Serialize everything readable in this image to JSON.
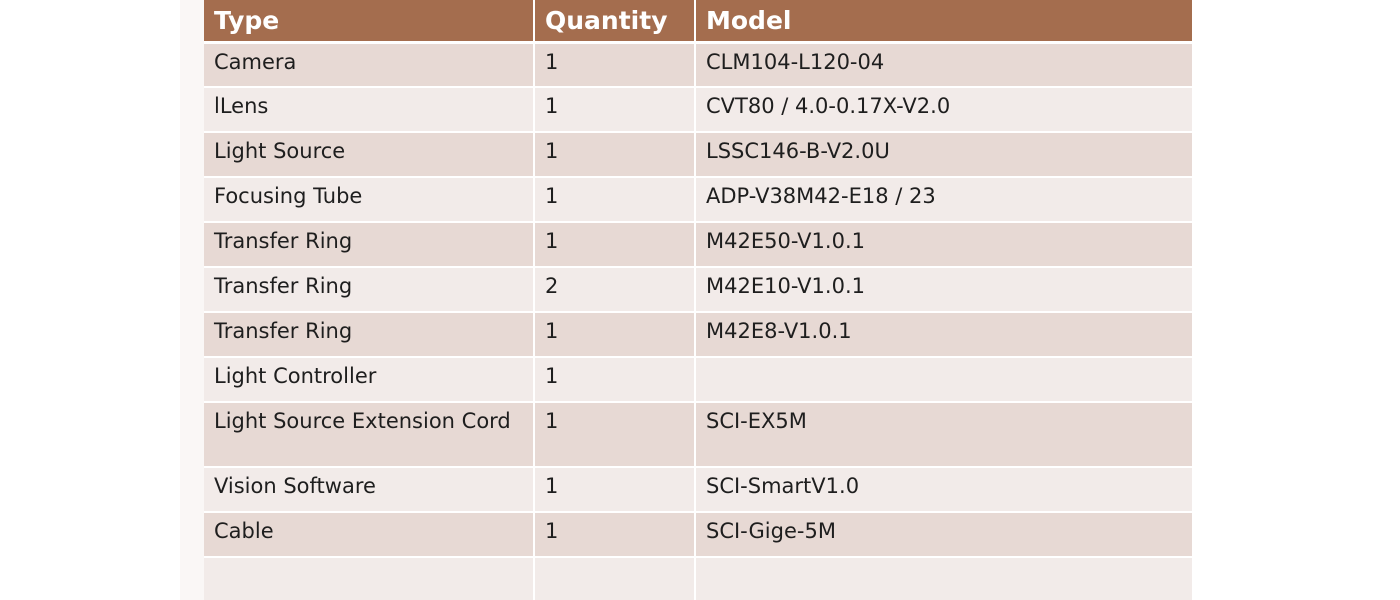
{
  "table": {
    "headers": [
      "Type",
      "Quantity",
      "Model"
    ],
    "rows": [
      {
        "type": "Camera",
        "quantity": "1",
        "model": "CLM104-L120-04"
      },
      {
        "type": "lLens",
        "quantity": "1",
        "model": "CVT80 / 4.0-0.17X-V2.0"
      },
      {
        "type": "Light Source",
        "quantity": "1",
        "model": "LSSC146-B-V2.0U"
      },
      {
        "type": "Focusing Tube",
        "quantity": "1",
        "model": "ADP-V38M42-E18 / 23"
      },
      {
        "type": "Transfer Ring",
        "quantity": "1",
        "model": "M42E50-V1.0.1"
      },
      {
        "type": "Transfer Ring",
        "quantity": "2",
        "model": "M42E10-V1.0.1"
      },
      {
        "type": "Transfer Ring",
        "quantity": "1",
        "model": "M42E8-V1.0.1"
      },
      {
        "type": "Light Controller",
        "quantity": "1",
        "model": ""
      },
      {
        "type": "Light Source Extension Cord",
        "quantity": "1",
        "model": "SCI-EX5M"
      },
      {
        "type": "Vision Software",
        "quantity": "1",
        "model": "SCI-SmartV1.0"
      },
      {
        "type": "Cable",
        "quantity": "1",
        "model": "SCI-Gige-5M"
      },
      {
        "type": "",
        "quantity": "",
        "model": ""
      }
    ]
  },
  "colors": {
    "header_bg": "#a46d4e",
    "row_odd": "#e7d9d4",
    "row_even": "#f2ebe9"
  }
}
